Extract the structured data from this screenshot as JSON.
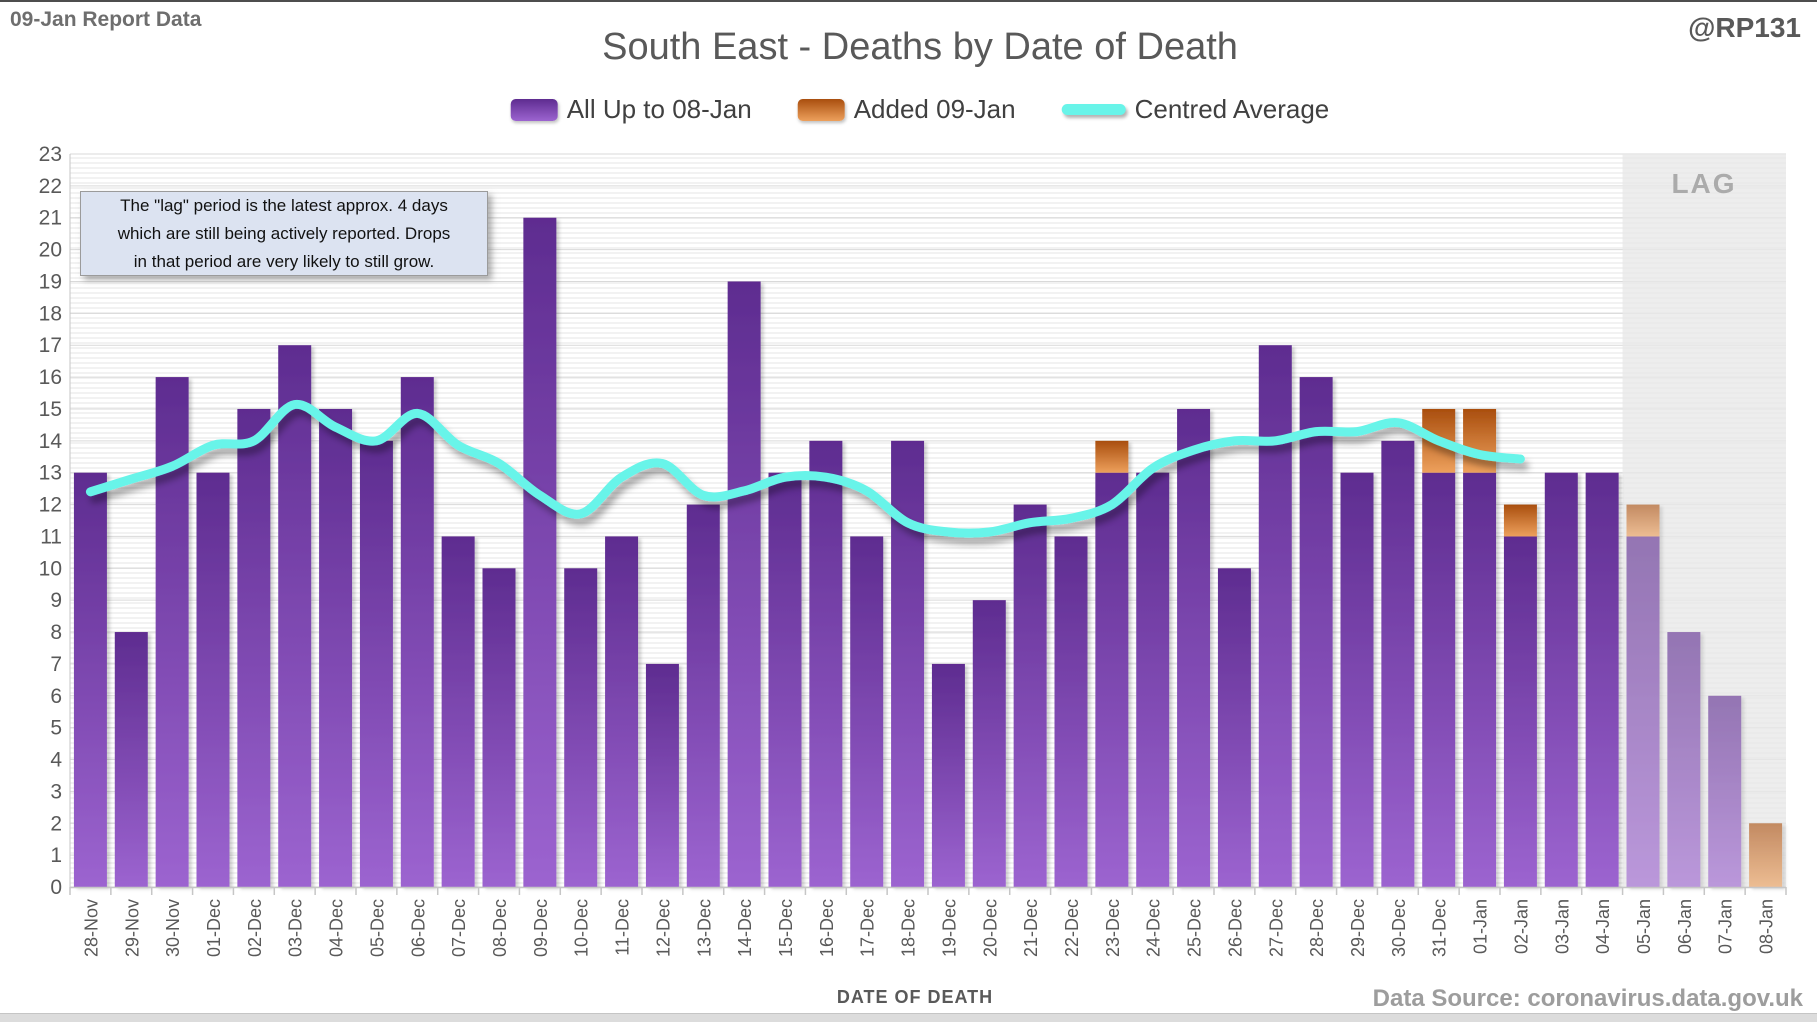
{
  "header": {
    "report_label": "09-Jan Report Data",
    "handle": "@RP131"
  },
  "title": "South East - Deaths by Date of Death",
  "legend": [
    {
      "label": "All Up to 08-Jan",
      "swatch": "purple-gradient-bar"
    },
    {
      "label": "Added 09-Jan",
      "swatch": "orange-gradient-bar"
    },
    {
      "label": "Centred Average",
      "swatch": "cyan-line"
    }
  ],
  "annotation": {
    "lines": [
      "The \"lag\" period is the latest approx. 4 days",
      "which are still being actively reported.  Drops",
      "in that period are very likely to still grow."
    ]
  },
  "lag": {
    "label": "LAG",
    "start_category": "05-Jan"
  },
  "x_axis": {
    "title": "DATE OF DEATH"
  },
  "footer": {
    "data_source": "Data Source: coronavirus.data.gov.uk"
  },
  "colors": {
    "purple_top": "#5e2c90",
    "purple_bottom": "#9c64d0",
    "orange_top": "#a94e0e",
    "orange_bottom": "#eda05c",
    "cyan_line": "#68f4e9",
    "gridline": "#d9d9d9",
    "axis": "#c6c6c6",
    "label_text": "#595959",
    "lag_band": "#e4e4e4"
  },
  "chart_data": {
    "type": "bar",
    "title": "South East - Deaths by Date of Death",
    "xlabel": "DATE OF DEATH",
    "ylabel": "",
    "ylim": [
      0,
      23
    ],
    "ytick_step": 1,
    "grid": "horizontal",
    "legend_position": "top-center",
    "lag_start_index": 38,
    "categories": [
      "28-Nov",
      "29-Nov",
      "30-Nov",
      "01-Dec",
      "02-Dec",
      "03-Dec",
      "04-Dec",
      "05-Dec",
      "06-Dec",
      "07-Dec",
      "08-Dec",
      "09-Dec",
      "10-Dec",
      "11-Dec",
      "12-Dec",
      "13-Dec",
      "14-Dec",
      "15-Dec",
      "16-Dec",
      "17-Dec",
      "18-Dec",
      "19-Dec",
      "20-Dec",
      "21-Dec",
      "22-Dec",
      "23-Dec",
      "24-Dec",
      "25-Dec",
      "26-Dec",
      "27-Dec",
      "28-Dec",
      "29-Dec",
      "30-Dec",
      "31-Dec",
      "01-Jan",
      "02-Jan",
      "03-Jan",
      "04-Jan",
      "05-Jan",
      "06-Jan",
      "07-Jan",
      "08-Jan"
    ],
    "series": [
      {
        "name": "All Up to 08-Jan",
        "type": "bar",
        "stack": "deaths",
        "values": [
          13,
          8,
          16,
          13,
          15,
          17,
          15,
          14,
          16,
          11,
          10,
          21,
          10,
          11,
          7,
          12,
          19,
          13,
          14,
          11,
          14,
          7,
          9,
          12,
          11,
          13,
          13,
          15,
          10,
          17,
          16,
          13,
          14,
          13,
          13,
          11,
          13,
          13,
          11,
          8,
          6,
          0
        ]
      },
      {
        "name": "Added 09-Jan",
        "type": "bar",
        "stack": "deaths",
        "values": [
          0,
          0,
          0,
          0,
          0,
          0,
          0,
          0,
          0,
          0,
          0,
          0,
          0,
          0,
          0,
          0,
          0,
          0,
          0,
          0,
          0,
          0,
          0,
          0,
          0,
          1,
          0,
          0,
          0,
          0,
          0,
          0,
          0,
          2,
          2,
          1,
          0,
          0,
          1,
          0,
          0,
          2
        ]
      },
      {
        "name": "Centred Average",
        "type": "line",
        "values": [
          12.4,
          12.8,
          13.2,
          13.86,
          14.0,
          15.14,
          14.43,
          14.0,
          14.86,
          13.86,
          13.29,
          12.29,
          11.71,
          12.86,
          13.29,
          12.29,
          12.43,
          12.86,
          12.86,
          12.43,
          11.43,
          11.14,
          11.14,
          11.43,
          11.57,
          12.0,
          13.14,
          13.71,
          14.0,
          14.0,
          14.29,
          14.29,
          14.57,
          14.0,
          13.57,
          13.43,
          null,
          null,
          null,
          null,
          null,
          null
        ]
      }
    ]
  }
}
